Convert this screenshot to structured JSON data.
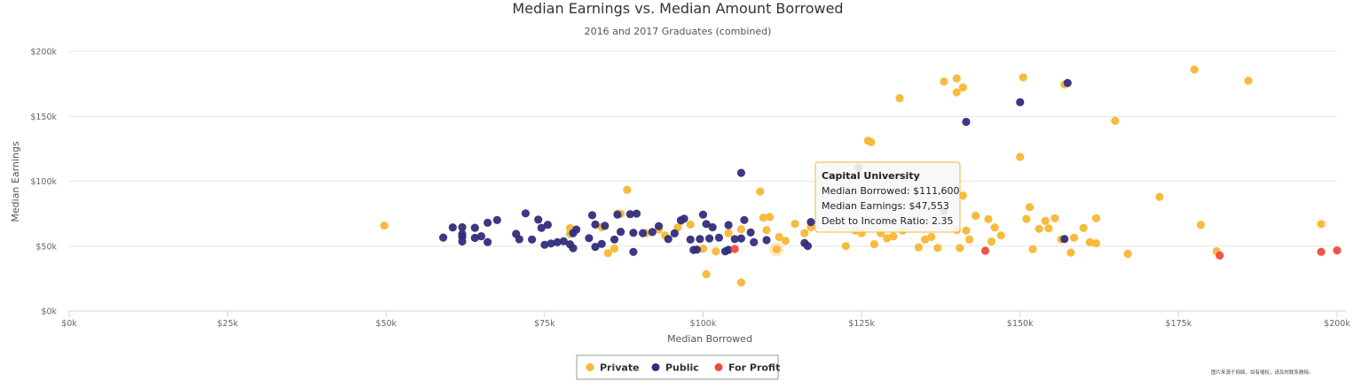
{
  "chart_data": {
    "type": "scatter",
    "title": "Median Earnings vs. Median Amount Borrowed",
    "subtitle": "2016 and 2017 Graduates (combined)",
    "xlabel": "Median Borrowed",
    "ylabel": "Median Earnings",
    "xlim": [
      0,
      200000
    ],
    "ylim": [
      0,
      200000
    ],
    "x_ticks": [
      "$0k",
      "$25k",
      "$50k",
      "$75k",
      "$100k",
      "$125k",
      "$150k",
      "$175k",
      "$200k"
    ],
    "y_ticks": [
      "$0k",
      "$50k",
      "$100k",
      "$150k",
      "$200k"
    ],
    "grid": "horizontal",
    "legend_position": "bottom-center",
    "series": [
      {
        "name": "Private",
        "color": "#f7b733",
        "points": [
          [
            49700,
            65800
          ],
          [
            79000,
            63800
          ],
          [
            79000,
            59400
          ],
          [
            84000,
            64500
          ],
          [
            86500,
            75100
          ],
          [
            87000,
            74900
          ],
          [
            88000,
            93400
          ],
          [
            85000,
            44500
          ],
          [
            86000,
            48100
          ],
          [
            91000,
            60000
          ],
          [
            93000,
            62800
          ],
          [
            94000,
            58200
          ],
          [
            96000,
            64200
          ],
          [
            96500,
            69300
          ],
          [
            98000,
            66600
          ],
          [
            100000,
            48000
          ],
          [
            100500,
            28300
          ],
          [
            102000,
            46000
          ],
          [
            104000,
            60000
          ],
          [
            106000,
            63000
          ],
          [
            106000,
            22000
          ],
          [
            109000,
            92100
          ],
          [
            109500,
            71900
          ],
          [
            110000,
            62300
          ],
          [
            110500,
            72400
          ],
          [
            111600,
            47553
          ],
          [
            112000,
            57000
          ],
          [
            113000,
            54000
          ],
          [
            114500,
            67200
          ],
          [
            116000,
            60000
          ],
          [
            117000,
            64500
          ],
          [
            120000,
            105000
          ],
          [
            122500,
            50000
          ],
          [
            124000,
            62000
          ],
          [
            125000,
            60000
          ],
          [
            126000,
            131200
          ],
          [
            126500,
            130100
          ],
          [
            127000,
            51500
          ],
          [
            128000,
            60000
          ],
          [
            129000,
            56000
          ],
          [
            130000,
            57500
          ],
          [
            131000,
            163900
          ],
          [
            131500,
            62000
          ],
          [
            134000,
            49000
          ],
          [
            135000,
            55000
          ],
          [
            136000,
            57000
          ],
          [
            137000,
            48600
          ],
          [
            138000,
            176800
          ],
          [
            140000,
            179200
          ],
          [
            140000,
            168400
          ],
          [
            140000,
            62300
          ],
          [
            141000,
            172300
          ],
          [
            141000,
            89000
          ],
          [
            141500,
            62000
          ],
          [
            142000,
            55000
          ],
          [
            140500,
            48500
          ],
          [
            143000,
            73400
          ],
          [
            145000,
            70700
          ],
          [
            146000,
            64400
          ],
          [
            145500,
            53500
          ],
          [
            147000,
            58200
          ],
          [
            150000,
            118800
          ],
          [
            150500,
            179900
          ],
          [
            151000,
            70900
          ],
          [
            151500,
            80000
          ],
          [
            152000,
            47600
          ],
          [
            153000,
            63300
          ],
          [
            154000,
            69400
          ],
          [
            154500,
            63600
          ],
          [
            155500,
            71500
          ],
          [
            157000,
            174500
          ],
          [
            156500,
            55200
          ],
          [
            158000,
            45000
          ],
          [
            158500,
            56500
          ],
          [
            160000,
            64000
          ],
          [
            161000,
            53000
          ],
          [
            162000,
            52200
          ],
          [
            162000,
            71500
          ],
          [
            165000,
            146500
          ],
          [
            167000,
            44000
          ],
          [
            172000,
            87900
          ],
          [
            177500,
            186000
          ],
          [
            178500,
            66400
          ],
          [
            181000,
            46000
          ],
          [
            186000,
            177400
          ],
          [
            197500,
            67000
          ]
        ]
      },
      {
        "name": "Public",
        "color": "#322d7d",
        "points": [
          [
            59000,
            56600
          ],
          [
            60500,
            64400
          ],
          [
            62000,
            64500
          ],
          [
            62000,
            57200
          ],
          [
            62000,
            59400
          ],
          [
            62000,
            53600
          ],
          [
            64000,
            56300
          ],
          [
            64000,
            64100
          ],
          [
            65000,
            57600
          ],
          [
            66000,
            68000
          ],
          [
            66000,
            53100
          ],
          [
            67500,
            70000
          ],
          [
            70500,
            59400
          ],
          [
            71000,
            55300
          ],
          [
            72000,
            75200
          ],
          [
            73000,
            55100
          ],
          [
            74000,
            70400
          ],
          [
            74500,
            64000
          ],
          [
            75000,
            51000
          ],
          [
            75500,
            66400
          ],
          [
            76000,
            52000
          ],
          [
            77000,
            53000
          ],
          [
            78000,
            53800
          ],
          [
            79500,
            60000
          ],
          [
            80000,
            62700
          ],
          [
            79000,
            51400
          ],
          [
            79500,
            48400
          ],
          [
            82000,
            56100
          ],
          [
            83000,
            66600
          ],
          [
            82500,
            73800
          ],
          [
            84500,
            65600
          ],
          [
            83000,
            49400
          ],
          [
            84000,
            51700
          ],
          [
            86000,
            55100
          ],
          [
            87000,
            61000
          ],
          [
            88500,
            74600
          ],
          [
            89000,
            60300
          ],
          [
            86500,
            74300
          ],
          [
            89000,
            45500
          ],
          [
            89500,
            75000
          ],
          [
            90500,
            60000
          ],
          [
            92000,
            60800
          ],
          [
            93000,
            65400
          ],
          [
            94500,
            55400
          ],
          [
            95500,
            59800
          ],
          [
            96500,
            69900
          ],
          [
            97000,
            71100
          ],
          [
            98000,
            55000
          ],
          [
            98500,
            47000
          ],
          [
            99500,
            55500
          ],
          [
            99000,
            47300
          ],
          [
            100000,
            74300
          ],
          [
            100500,
            67000
          ],
          [
            101500,
            64500
          ],
          [
            101000,
            55900
          ],
          [
            102500,
            56500
          ],
          [
            103500,
            46000
          ],
          [
            104000,
            66200
          ],
          [
            105000,
            55400
          ],
          [
            104000,
            47100
          ],
          [
            106000,
            106400
          ],
          [
            106500,
            70100
          ],
          [
            106000,
            55900
          ],
          [
            107500,
            60500
          ],
          [
            108000,
            53000
          ],
          [
            110000,
            54600
          ],
          [
            116000,
            52400
          ],
          [
            116500,
            50100
          ],
          [
            117000,
            68500
          ],
          [
            124500,
            110500
          ],
          [
            138000,
            77100
          ],
          [
            141500,
            145700
          ],
          [
            150000,
            160800
          ],
          [
            157000,
            55500
          ],
          [
            157500,
            175700
          ]
        ]
      },
      {
        "name": "For Profit",
        "color": "#f14a3c",
        "points": [
          [
            144500,
            46400
          ],
          [
            181500,
            42700
          ],
          [
            197500,
            45600
          ],
          [
            200000,
            46700
          ],
          [
            105000,
            47800
          ]
        ]
      }
    ],
    "tooltip": {
      "title": "Capital University",
      "line1": "Median Borrowed: $111,600",
      "line2": "Median Earnings: $47,553",
      "line3": "Debt to Income Ratio: 2.35"
    },
    "watermark": "图片来源于网络，如有侵权，请及时联系删除。"
  }
}
